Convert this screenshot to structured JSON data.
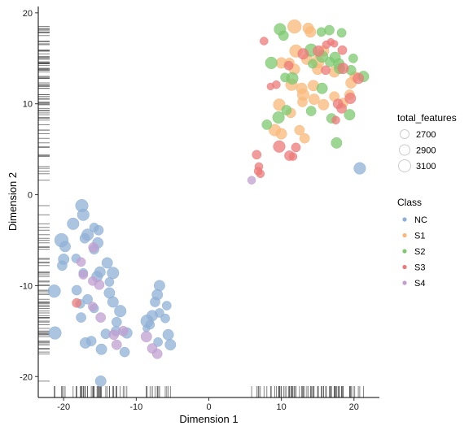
{
  "chart_data": {
    "type": "scatter",
    "xlabel": "Dimension 1",
    "ylabel": "Dimension 2",
    "xlim": [
      -23.5,
      23.5
    ],
    "ylim": [
      -22.3,
      20.7
    ],
    "x_ticks": [
      -20,
      -10,
      0,
      10,
      20
    ],
    "y_ticks": [
      -20,
      -10,
      0,
      10,
      20
    ],
    "x_tick_labels": [
      "-20",
      "-10",
      "0",
      "10",
      "20"
    ],
    "y_tick_labels": [
      "-20",
      "-10",
      "0",
      "10",
      "20"
    ],
    "grid": false,
    "rug_plots": true,
    "legends": {
      "size": {
        "title": "total_features",
        "entries": [
          {
            "label": "2700",
            "value": 2700
          },
          {
            "label": "2900",
            "value": 2900
          },
          {
            "label": "3100",
            "value": 3100
          }
        ]
      },
      "color": {
        "title": "Class",
        "entries": [
          {
            "label": "NC",
            "color": "#8fb0d6"
          },
          {
            "label": "S1",
            "color": "#f9b87a"
          },
          {
            "label": "S2",
            "color": "#7ec870"
          },
          {
            "label": "S3",
            "color": "#ec7a78"
          },
          {
            "label": "S4",
            "color": "#c09fd0"
          }
        ]
      }
    },
    "series": [
      {
        "name": "NC",
        "color": "#8fb0d6",
        "points": [
          [
            -17.5,
            -1.2,
            2950
          ],
          [
            -17.3,
            -2.2,
            2900
          ],
          [
            -18.7,
            -3.2,
            2900
          ],
          [
            -15.8,
            -3.6,
            2750
          ],
          [
            -15.2,
            -3.9,
            2800
          ],
          [
            -16.7,
            -4.4,
            2900
          ],
          [
            -17.1,
            -4.8,
            2800
          ],
          [
            -20.3,
            -5.0,
            3000
          ],
          [
            -15.3,
            -5.3,
            2850
          ],
          [
            -19.8,
            -5.7,
            2850
          ],
          [
            -15.8,
            -6.0,
            2800
          ],
          [
            -20.0,
            -7.1,
            2850
          ],
          [
            -18.3,
            -7.0,
            2750
          ],
          [
            -14.0,
            -7.5,
            2850
          ],
          [
            -20.2,
            -7.8,
            2800
          ],
          [
            -15.0,
            -8.5,
            2850
          ],
          [
            -17.3,
            -8.6,
            2750
          ],
          [
            -13.2,
            -8.6,
            2900
          ],
          [
            -15.4,
            -9.0,
            2850
          ],
          [
            -13.7,
            -9.6,
            2750
          ],
          [
            -18.2,
            -10.5,
            2800
          ],
          [
            -21.3,
            -10.6,
            2950
          ],
          [
            -13.7,
            -10.8,
            2850
          ],
          [
            -16.7,
            -11.5,
            2800
          ],
          [
            -17.7,
            -12.0,
            2750
          ],
          [
            -13.2,
            -11.8,
            2850
          ],
          [
            -12.2,
            -12.8,
            2900
          ],
          [
            -15.8,
            -12.5,
            2750
          ],
          [
            -17.6,
            -13.5,
            2800
          ],
          [
            -8.5,
            -13.9,
            2950
          ],
          [
            -7.8,
            -13.3,
            2850
          ],
          [
            -12.7,
            -14.0,
            2800
          ],
          [
            -14.2,
            -15.3,
            2800
          ],
          [
            -12.8,
            -15.0,
            2800
          ],
          [
            -8.1,
            -14.3,
            2750
          ],
          [
            -5.6,
            -15.4,
            2850
          ],
          [
            -5.3,
            -16.5,
            2850
          ],
          [
            -16.2,
            -16.1,
            2800
          ],
          [
            -17.0,
            -16.3,
            2850
          ],
          [
            -7.0,
            -16.2,
            2750
          ],
          [
            -14.8,
            -17.0,
            2850
          ],
          [
            -11.6,
            -17.3,
            2800
          ],
          [
            -21.2,
            -15.2,
            2950
          ],
          [
            -6.8,
            -10.0,
            2850
          ],
          [
            -7.4,
            -11.8,
            2800
          ],
          [
            -5.8,
            -12.2,
            2750
          ],
          [
            -6.0,
            -13.6,
            2750
          ],
          [
            -11.3,
            -15.2,
            2850
          ],
          [
            -6.8,
            -13.0,
            2750
          ],
          [
            -7.1,
            -11.0,
            2850
          ],
          [
            -8.6,
            -14.7,
            2650
          ],
          [
            -14.9,
            -20.5,
            2850
          ],
          [
            20.8,
            2.9,
            2900
          ]
        ]
      },
      {
        "name": "S1",
        "color": "#f9b87a",
        "points": [
          [
            11.8,
            18.5,
            3000
          ],
          [
            13.7,
            18.3,
            2850
          ],
          [
            14.0,
            17.9,
            2850
          ],
          [
            12.0,
            15.8,
            2950
          ],
          [
            15.8,
            15.8,
            2850
          ],
          [
            11.1,
            14.5,
            2800
          ],
          [
            13.5,
            14.9,
            2850
          ],
          [
            15.0,
            14.6,
            2950
          ],
          [
            17.3,
            13.5,
            2850
          ],
          [
            10.0,
            14.5,
            2850
          ],
          [
            11.8,
            13.8,
            2850
          ],
          [
            11.4,
            12.1,
            2900
          ],
          [
            14.4,
            12.0,
            2850
          ],
          [
            13.0,
            11.0,
            2900
          ],
          [
            12.9,
            10.2,
            2800
          ],
          [
            14.5,
            10.5,
            2850
          ],
          [
            15.8,
            9.9,
            2850
          ],
          [
            17.3,
            10.8,
            2800
          ],
          [
            18.5,
            10.1,
            2800
          ],
          [
            19.4,
            11.0,
            2800
          ],
          [
            9.7,
            9.9,
            2900
          ],
          [
            11.3,
            9.0,
            2800
          ],
          [
            9.1,
            7.1,
            2900
          ],
          [
            12.5,
            7.1,
            2800
          ],
          [
            13.2,
            6.2,
            2800
          ],
          [
            20.1,
            13.0,
            2800
          ],
          [
            19.6,
            12.3,
            2850
          ],
          [
            15.0,
            13.8,
            2850
          ],
          [
            10.0,
            6.7,
            2850
          ],
          [
            12.8,
            11.7,
            2850
          ]
        ]
      },
      {
        "name": "S2",
        "color": "#7ec870",
        "points": [
          [
            9.8,
            18.2,
            2900
          ],
          [
            15.5,
            17.9,
            2750
          ],
          [
            16.6,
            18.1,
            2800
          ],
          [
            10.3,
            17.5,
            2800
          ],
          [
            18.3,
            17.8,
            2750
          ],
          [
            14.1,
            15.9,
            2950
          ],
          [
            15.6,
            15.2,
            2900
          ],
          [
            17.4,
            15.1,
            2850
          ],
          [
            19.9,
            15.0,
            2750
          ],
          [
            8.6,
            14.5,
            2900
          ],
          [
            16.7,
            14.6,
            2800
          ],
          [
            18.0,
            13.9,
            2850
          ],
          [
            19.6,
            13.7,
            2800
          ],
          [
            11.5,
            12.8,
            2900
          ],
          [
            21.3,
            13.0,
            2850
          ],
          [
            15.6,
            11.7,
            2850
          ],
          [
            10.7,
            9.3,
            2800
          ],
          [
            9.6,
            8.5,
            2900
          ],
          [
            14.1,
            9.2,
            2800
          ],
          [
            16.9,
            8.4,
            2800
          ],
          [
            19.4,
            8.8,
            2850
          ],
          [
            8.0,
            7.7,
            2800
          ],
          [
            17.6,
            5.7,
            2850
          ],
          [
            10.5,
            12.9,
            2750
          ],
          [
            17.9,
            14.4,
            2850
          ],
          [
            14.3,
            14.4,
            2750
          ]
        ]
      },
      {
        "name": "S3",
        "color": "#ec7a78",
        "points": [
          [
            7.6,
            16.9,
            2700
          ],
          [
            16.8,
            16.8,
            2650
          ],
          [
            16.2,
            16.5,
            2700
          ],
          [
            18.4,
            15.9,
            2750
          ],
          [
            13.0,
            15.5,
            2850
          ],
          [
            15.1,
            15.8,
            2850
          ],
          [
            11.0,
            14.2,
            2750
          ],
          [
            18.5,
            13.9,
            2850
          ],
          [
            20.6,
            12.8,
            2850
          ],
          [
            8.5,
            11.9,
            2650
          ],
          [
            9.3,
            12.1,
            2700
          ],
          [
            19.5,
            10.6,
            2850
          ],
          [
            17.8,
            10.0,
            2800
          ],
          [
            18.3,
            9.5,
            2800
          ],
          [
            9.7,
            5.3,
            2900
          ],
          [
            11.1,
            4.3,
            2800
          ],
          [
            6.6,
            4.4,
            2750
          ],
          [
            11.6,
            4.2,
            2700
          ],
          [
            6.9,
            3.1,
            2700
          ],
          [
            6.8,
            2.6,
            2700
          ],
          [
            7.1,
            2.3,
            2700
          ],
          [
            12.0,
            5.2,
            2750
          ],
          [
            16.1,
            13.7,
            2750
          ],
          [
            17.5,
            8.2,
            2700
          ],
          [
            -18.2,
            -11.9,
            2750
          ],
          [
            17.3,
            16.6,
            2650
          ]
        ]
      },
      {
        "name": "S4",
        "color": "#c09fd0",
        "points": [
          [
            -15.9,
            -5.8,
            2800
          ],
          [
            -17.6,
            -7.4,
            2750
          ],
          [
            -17.3,
            -8.8,
            2750
          ],
          [
            -16.0,
            -9.5,
            2750
          ],
          [
            -15.1,
            -9.9,
            2800
          ],
          [
            -14.9,
            -13.5,
            2800
          ],
          [
            -13.1,
            -15.4,
            2800
          ],
          [
            -11.8,
            -15.0,
            2800
          ],
          [
            -8.6,
            -15.6,
            2850
          ],
          [
            -12.7,
            -16.5,
            2800
          ],
          [
            -7.8,
            -16.9,
            2800
          ],
          [
            -7.1,
            -17.5,
            2800
          ],
          [
            -16.0,
            -12.3,
            2750
          ],
          [
            5.9,
            1.6,
            2700
          ]
        ]
      }
    ]
  }
}
